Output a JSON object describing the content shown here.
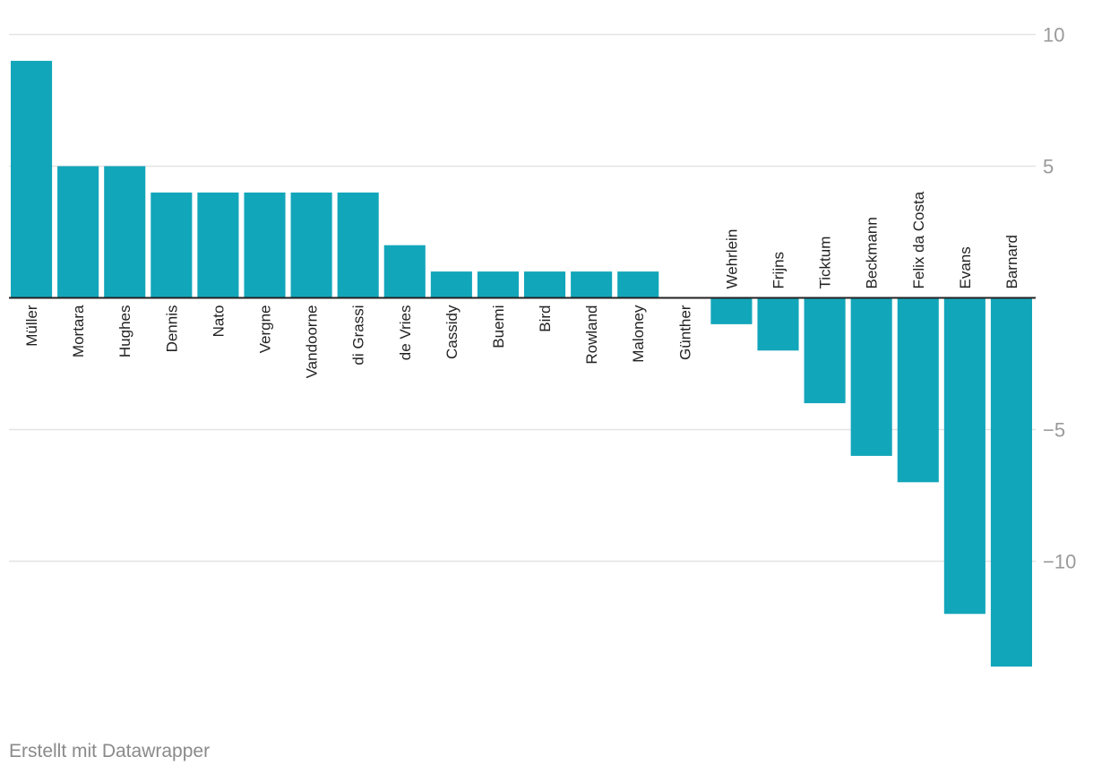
{
  "chart_data": {
    "type": "bar",
    "title": "",
    "xlabel": "",
    "ylabel": "",
    "ylim": [
      -14,
      10
    ],
    "y_ticks": [
      10,
      5,
      -5,
      -10
    ],
    "y_tick_labels": [
      "10",
      "5",
      "−5",
      "−10"
    ],
    "grid": true,
    "bar_color": "#12a6ba",
    "categories": [
      "Müller",
      "Mortara",
      "Hughes",
      "Dennis",
      "Nato",
      "Vergne",
      "Vandoorne",
      "di Grassi",
      "de Vries",
      "Cassidy",
      "Buemi",
      "Bird",
      "Rowland",
      "Maloney",
      "Günther",
      "Wehrlein",
      "Frijns",
      "Ticktum",
      "Beckmann",
      "Felix da Costa",
      "Evans",
      "Barnard"
    ],
    "values": [
      9,
      5,
      5,
      4,
      4,
      4,
      4,
      4,
      2,
      1,
      1,
      1,
      1,
      1,
      0,
      -1,
      -2,
      -4,
      -6,
      -7,
      -12,
      -14
    ]
  },
  "footer": {
    "credit": "Erstellt mit Datawrapper"
  }
}
